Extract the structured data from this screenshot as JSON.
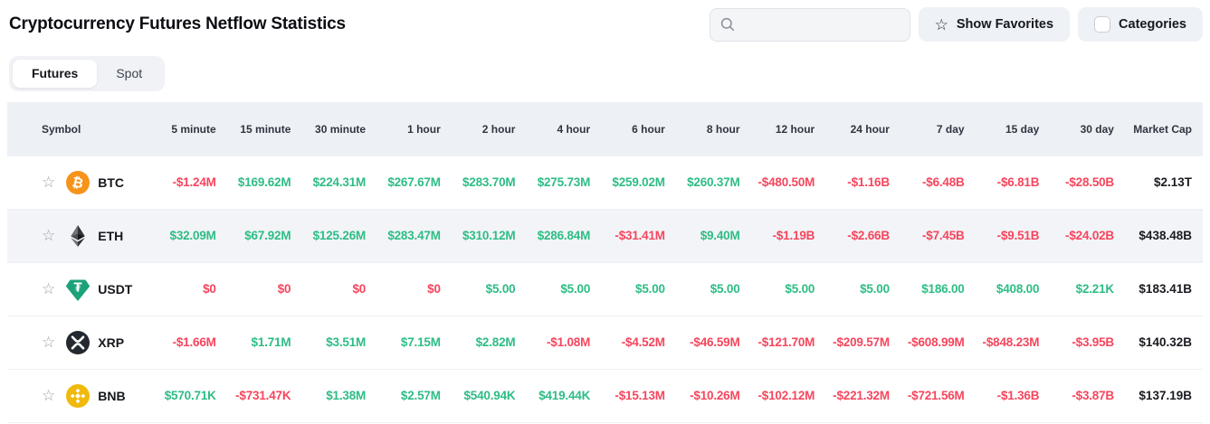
{
  "header": {
    "title": "Cryptocurrency Futures Netflow Statistics",
    "search": {
      "value": "",
      "placeholder": ""
    },
    "show_favorites_label": "Show Favorites",
    "categories_label": "Categories",
    "categories_checked": false
  },
  "tabs": [
    {
      "label": "Futures",
      "active": true
    },
    {
      "label": "Spot",
      "active": false
    }
  ],
  "colors": {
    "positive": "#2ebd85",
    "negative": "#f6465d",
    "btc": "#f7931a",
    "usdt": "#1ba27a",
    "bnb": "#f0b90b",
    "xrp": "#23292f"
  },
  "table": {
    "columns": [
      "Symbol",
      "5 minute",
      "15 minute",
      "30 minute",
      "1 hour",
      "2 hour",
      "4 hour",
      "6 hour",
      "8 hour",
      "12 hour",
      "24 hour",
      "7 day",
      "15 day",
      "30 day",
      "Market Cap"
    ],
    "rows": [
      {
        "symbol": "BTC",
        "icon": "btc-icon",
        "highlighted": false,
        "favorited": false,
        "values": [
          {
            "text": "-$1.24M",
            "dir": "neg"
          },
          {
            "text": "$169.62M",
            "dir": "pos"
          },
          {
            "text": "$224.31M",
            "dir": "pos"
          },
          {
            "text": "$267.67M",
            "dir": "pos"
          },
          {
            "text": "$283.70M",
            "dir": "pos"
          },
          {
            "text": "$275.73M",
            "dir": "pos"
          },
          {
            "text": "$259.02M",
            "dir": "pos"
          },
          {
            "text": "$260.37M",
            "dir": "pos"
          },
          {
            "text": "-$480.50M",
            "dir": "neg"
          },
          {
            "text": "-$1.16B",
            "dir": "neg"
          },
          {
            "text": "-$6.48B",
            "dir": "neg"
          },
          {
            "text": "-$6.81B",
            "dir": "neg"
          },
          {
            "text": "-$28.50B",
            "dir": "neg"
          }
        ],
        "market_cap": "$2.13T"
      },
      {
        "symbol": "ETH",
        "icon": "eth-icon",
        "highlighted": true,
        "favorited": false,
        "values": [
          {
            "text": "$32.09M",
            "dir": "pos"
          },
          {
            "text": "$67.92M",
            "dir": "pos"
          },
          {
            "text": "$125.26M",
            "dir": "pos"
          },
          {
            "text": "$283.47M",
            "dir": "pos"
          },
          {
            "text": "$310.12M",
            "dir": "pos"
          },
          {
            "text": "$286.84M",
            "dir": "pos"
          },
          {
            "text": "-$31.41M",
            "dir": "neg"
          },
          {
            "text": "$9.40M",
            "dir": "pos"
          },
          {
            "text": "-$1.19B",
            "dir": "neg"
          },
          {
            "text": "-$2.66B",
            "dir": "neg"
          },
          {
            "text": "-$7.45B",
            "dir": "neg"
          },
          {
            "text": "-$9.51B",
            "dir": "neg"
          },
          {
            "text": "-$24.02B",
            "dir": "neg"
          }
        ],
        "market_cap": "$438.48B"
      },
      {
        "symbol": "USDT",
        "icon": "usdt-icon",
        "highlighted": false,
        "favorited": false,
        "values": [
          {
            "text": "$0",
            "dir": "neg"
          },
          {
            "text": "$0",
            "dir": "neg"
          },
          {
            "text": "$0",
            "dir": "neg"
          },
          {
            "text": "$0",
            "dir": "neg"
          },
          {
            "text": "$5.00",
            "dir": "pos"
          },
          {
            "text": "$5.00",
            "dir": "pos"
          },
          {
            "text": "$5.00",
            "dir": "pos"
          },
          {
            "text": "$5.00",
            "dir": "pos"
          },
          {
            "text": "$5.00",
            "dir": "pos"
          },
          {
            "text": "$5.00",
            "dir": "pos"
          },
          {
            "text": "$186.00",
            "dir": "pos"
          },
          {
            "text": "$408.00",
            "dir": "pos"
          },
          {
            "text": "$2.21K",
            "dir": "pos"
          }
        ],
        "market_cap": "$183.41B"
      },
      {
        "symbol": "XRP",
        "icon": "xrp-icon",
        "highlighted": false,
        "favorited": false,
        "values": [
          {
            "text": "-$1.66M",
            "dir": "neg"
          },
          {
            "text": "$1.71M",
            "dir": "pos"
          },
          {
            "text": "$3.51M",
            "dir": "pos"
          },
          {
            "text": "$7.15M",
            "dir": "pos"
          },
          {
            "text": "$2.82M",
            "dir": "pos"
          },
          {
            "text": "-$1.08M",
            "dir": "neg"
          },
          {
            "text": "-$4.52M",
            "dir": "neg"
          },
          {
            "text": "-$46.59M",
            "dir": "neg"
          },
          {
            "text": "-$121.70M",
            "dir": "neg"
          },
          {
            "text": "-$209.57M",
            "dir": "neg"
          },
          {
            "text": "-$608.99M",
            "dir": "neg"
          },
          {
            "text": "-$848.23M",
            "dir": "neg"
          },
          {
            "text": "-$3.95B",
            "dir": "neg"
          }
        ],
        "market_cap": "$140.32B"
      },
      {
        "symbol": "BNB",
        "icon": "bnb-icon",
        "highlighted": false,
        "favorited": false,
        "values": [
          {
            "text": "$570.71K",
            "dir": "pos"
          },
          {
            "text": "-$731.47K",
            "dir": "neg"
          },
          {
            "text": "$1.38M",
            "dir": "pos"
          },
          {
            "text": "$2.57M",
            "dir": "pos"
          },
          {
            "text": "$540.94K",
            "dir": "pos"
          },
          {
            "text": "$419.44K",
            "dir": "pos"
          },
          {
            "text": "-$15.13M",
            "dir": "neg"
          },
          {
            "text": "-$10.26M",
            "dir": "neg"
          },
          {
            "text": "-$102.12M",
            "dir": "neg"
          },
          {
            "text": "-$221.32M",
            "dir": "neg"
          },
          {
            "text": "-$721.56M",
            "dir": "neg"
          },
          {
            "text": "-$1.36B",
            "dir": "neg"
          },
          {
            "text": "-$3.87B",
            "dir": "neg"
          }
        ],
        "market_cap": "$137.19B"
      }
    ]
  }
}
